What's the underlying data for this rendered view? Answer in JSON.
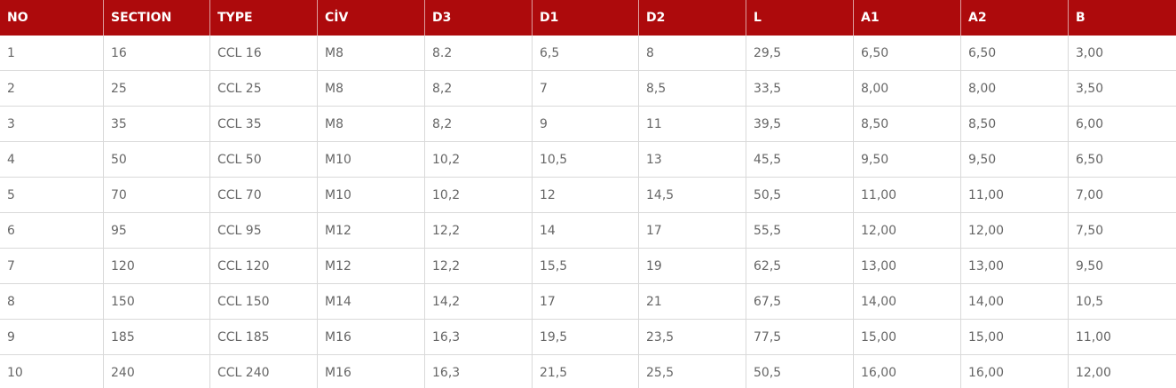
{
  "table": {
    "header": [
      "NO",
      "SECTION",
      "TYPE",
      "CİV",
      "D3",
      "D1",
      "D2",
      "L",
      "A1",
      "A2",
      "B"
    ],
    "rows": [
      [
        "1",
        "16",
        "CCL 16",
        "M8",
        "8.2",
        "6,5",
        "8",
        "29,5",
        "6,50",
        "6,50",
        "3,00"
      ],
      [
        "2",
        "25",
        "CCL 25",
        "M8",
        "8,2",
        "7",
        "8,5",
        "33,5",
        "8,00",
        "8,00",
        "3,50"
      ],
      [
        "3",
        "35",
        "CCL 35",
        "M8",
        "8,2",
        "9",
        "11",
        "39,5",
        "8,50",
        "8,50",
        "6,00"
      ],
      [
        "4",
        "50",
        "CCL 50",
        "M10",
        "10,2",
        "10,5",
        "13",
        "45,5",
        "9,50",
        "9,50",
        "6,50"
      ],
      [
        "5",
        "70",
        "CCL 70",
        "M10",
        "10,2",
        "12",
        "14,5",
        "50,5",
        "11,00",
        "11,00",
        "7,00"
      ],
      [
        "6",
        "95",
        "CCL 95",
        "M12",
        "12,2",
        "14",
        "17",
        "55,5",
        "12,00",
        "12,00",
        "7,50"
      ],
      [
        "7",
        "120",
        "CCL 120",
        "M12",
        "12,2",
        "15,5",
        "19",
        "62,5",
        "13,00",
        "13,00",
        "9,50"
      ],
      [
        "8",
        "150",
        "CCL 150",
        "M14",
        "14,2",
        "17",
        "21",
        "67,5",
        "14,00",
        "14,00",
        "10,5"
      ],
      [
        "9",
        "185",
        "CCL 185",
        "M16",
        "16,3",
        "19,5",
        "23,5",
        "77,5",
        "15,00",
        "15,00",
        "11,00"
      ],
      [
        "10",
        "240",
        "CCL 240",
        "M16",
        "16,3",
        "21,5",
        "25,5",
        "50,5",
        "16,00",
        "16,00",
        "12,00"
      ]
    ]
  }
}
